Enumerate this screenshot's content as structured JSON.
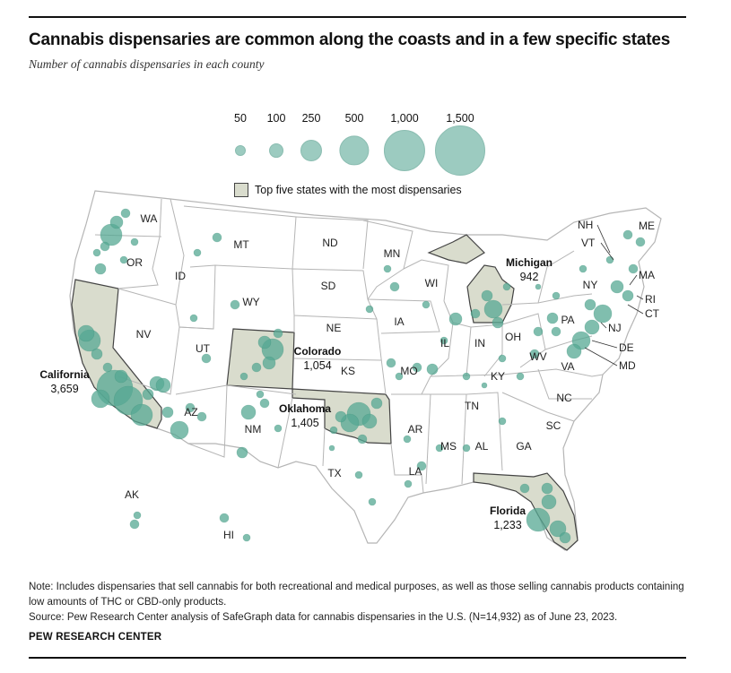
{
  "title": "Cannabis dispensaries are common along the coasts and in a few specific states",
  "subtitle": "Number of cannabis dispensaries in each county",
  "size_legend": [
    "50",
    "100",
    "250",
    "500",
    "1,000",
    "1,500"
  ],
  "size_legend_values": [
    50,
    100,
    250,
    500,
    1000,
    1500
  ],
  "top5_legend": "Top five states with the most dispensaries",
  "colors": {
    "circle_fill": "#56a893",
    "circle_dark": "#2f7d66",
    "legend_circle": "#9ccbc0",
    "highlight_state": "#d9dccd",
    "state_fill": "#ffffff",
    "state_stroke": "#b5b5b5"
  },
  "state_labels": [
    "WA",
    "OR",
    "ID",
    "MT",
    "WY",
    "ND",
    "SD",
    "NE",
    "MN",
    "WI",
    "IA",
    "NV",
    "UT",
    "KS",
    "MO",
    "IL",
    "IN",
    "OH",
    "KY",
    "AZ",
    "NM",
    "TX",
    "AR",
    "LA",
    "MS",
    "AL",
    "GA",
    "TN",
    "NC",
    "SC",
    "PA",
    "NY",
    "WV",
    "VA",
    "AK",
    "HI"
  ],
  "callout_states": [
    "NH",
    "VT",
    "ME",
    "MA",
    "RI",
    "CT",
    "NJ",
    "DE",
    "MD"
  ],
  "highlighted_states": [
    {
      "name": "California",
      "value": "3,659"
    },
    {
      "name": "Oklahoma",
      "value": "1,405"
    },
    {
      "name": "Florida",
      "value": "1,233"
    },
    {
      "name": "Colorado",
      "value": "1,054"
    },
    {
      "name": "Michigan",
      "value": "942"
    }
  ],
  "note": "Note: Includes dispensaries that sell cannabis for both recreational and medical purposes, as well as those selling cannabis products containing low amounts of THC or CBD-only products.",
  "source": "Source: Pew Research Center analysis of SafeGraph data for cannabis dispensaries in the U.S. (N=14,932) as of June 23, 2023.",
  "brand": "PEW RESEARCH CENTER"
}
